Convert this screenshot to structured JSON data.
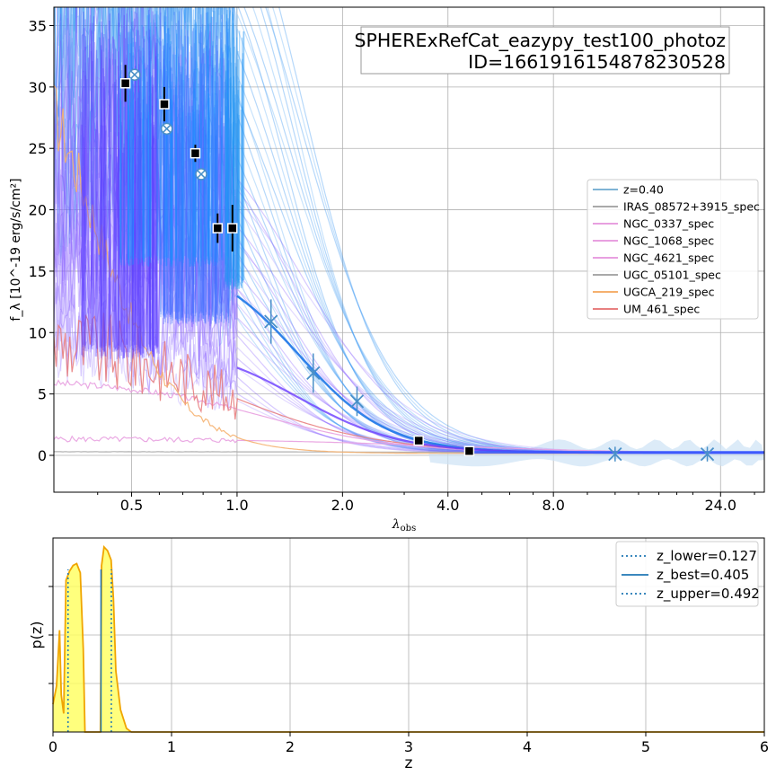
{
  "chart_data": [
    {
      "type": "line",
      "title_box": {
        "line1": "SPHERExRefCat_eazypy_test100_photoz",
        "line2": "ID=1661916154878230528"
      },
      "xlabel": "λ_obs",
      "xlabel_main": "λ",
      "xlabel_sub": "obs",
      "ylabel": "f_λ [10^-19 erg/s/cm²]",
      "x_scale": "log",
      "xlim": [
        0.3,
        32
      ],
      "ylim": [
        -3,
        36.5
      ],
      "x_ticks": [
        {
          "value": 0.5,
          "label": "0.5"
        },
        {
          "value": 1.0,
          "label": "1.0"
        },
        {
          "value": 2.0,
          "label": "2.0"
        },
        {
          "value": 4.0,
          "label": "4.0"
        },
        {
          "value": 8.0,
          "label": "8.0"
        },
        {
          "value": 24.0,
          "label": "24.0"
        }
      ],
      "y_ticks": [
        0,
        5,
        10,
        15,
        20,
        25,
        30,
        35
      ],
      "grid": true,
      "legend_position": "center-right",
      "legend": [
        {
          "label": "z=0.40",
          "color": "#7fb3d5"
        },
        {
          "label": "IRAS_08572+3915_spec",
          "color": "#a9a9a9"
        },
        {
          "label": "NGC_0337_spec",
          "color": "#e8a0e0"
        },
        {
          "label": "NGC_1068_spec",
          "color": "#e8a0e0"
        },
        {
          "label": "NGC_4621_spec",
          "color": "#e8a0e0"
        },
        {
          "label": "UGC_05101_spec",
          "color": "#a9a9a9"
        },
        {
          "label": "UGCA_219_spec",
          "color": "#f5b06e"
        },
        {
          "label": "UM_461_spec",
          "color": "#e88080"
        }
      ],
      "observed_points": [
        {
          "x": 0.48,
          "y": 30.3,
          "err": 1.5
        },
        {
          "x": 0.62,
          "y": 28.6,
          "err": 1.4
        },
        {
          "x": 0.76,
          "y": 24.6,
          "err": 0.7
        },
        {
          "x": 0.88,
          "y": 18.5,
          "err": 1.2
        },
        {
          "x": 0.97,
          "y": 18.5,
          "err": 1.9
        },
        {
          "x": 3.3,
          "y": 1.2,
          "err": 0.3
        },
        {
          "x": 4.6,
          "y": 0.35,
          "err": 0.15
        }
      ],
      "model_points": [
        {
          "x": 0.51,
          "y": 31.0
        },
        {
          "x": 0.63,
          "y": 26.6
        },
        {
          "x": 0.79,
          "y": 22.9
        }
      ],
      "upper_x_points": [
        {
          "x": 1.25,
          "y": 10.9,
          "err": 1.8
        },
        {
          "x": 1.65,
          "y": 6.7,
          "err": 1.6
        },
        {
          "x": 2.2,
          "y": 4.4,
          "err": 1.2
        },
        {
          "x": 12.0,
          "y": 0.1,
          "err": 0.6
        },
        {
          "x": 22.0,
          "y": 0.1,
          "err": 0.6
        }
      ],
      "colors": {
        "observed": "#000000",
        "model_marker": "#4a90c8",
        "template_blue": "#1e90ff",
        "template_violet": "#6a3cff",
        "uncertainty": "#cde3f5"
      }
    },
    {
      "type": "area",
      "xlabel": "z",
      "ylabel": "p(z)",
      "xlim": [
        0,
        6
      ],
      "x_ticks": [
        0,
        1,
        2,
        3,
        4,
        5,
        6
      ],
      "grid": true,
      "legend_position": "top-right",
      "legend": [
        {
          "label": "z_lower=0.127",
          "style": "dotted",
          "color": "#1f77b4"
        },
        {
          "label": "z_best=0.405",
          "style": "solid",
          "color": "#1f77b4"
        },
        {
          "label": "z_upper=0.492",
          "style": "dotted",
          "color": "#1f77b4"
        }
      ],
      "z_lower": 0.127,
      "z_best": 0.405,
      "z_upper": 0.492,
      "pz_curve": [
        [
          0.0,
          0.15
        ],
        [
          0.03,
          0.25
        ],
        [
          0.055,
          0.55
        ],
        [
          0.07,
          0.2
        ],
        [
          0.09,
          0.1
        ],
        [
          0.11,
          0.82
        ],
        [
          0.14,
          0.87
        ],
        [
          0.17,
          0.9
        ],
        [
          0.2,
          0.91
        ],
        [
          0.23,
          0.86
        ],
        [
          0.255,
          0.45
        ],
        [
          0.27,
          0.0
        ],
        [
          0.4,
          0.0
        ],
        [
          0.41,
          0.9
        ],
        [
          0.43,
          1.0
        ],
        [
          0.46,
          0.98
        ],
        [
          0.49,
          0.93
        ],
        [
          0.51,
          0.72
        ],
        [
          0.53,
          0.33
        ],
        [
          0.57,
          0.12
        ],
        [
          0.62,
          0.02
        ],
        [
          0.66,
          0.0
        ],
        [
          6.0,
          0.0
        ]
      ],
      "colors": {
        "fill": "#ffff66",
        "line": "#f0a500"
      }
    }
  ]
}
